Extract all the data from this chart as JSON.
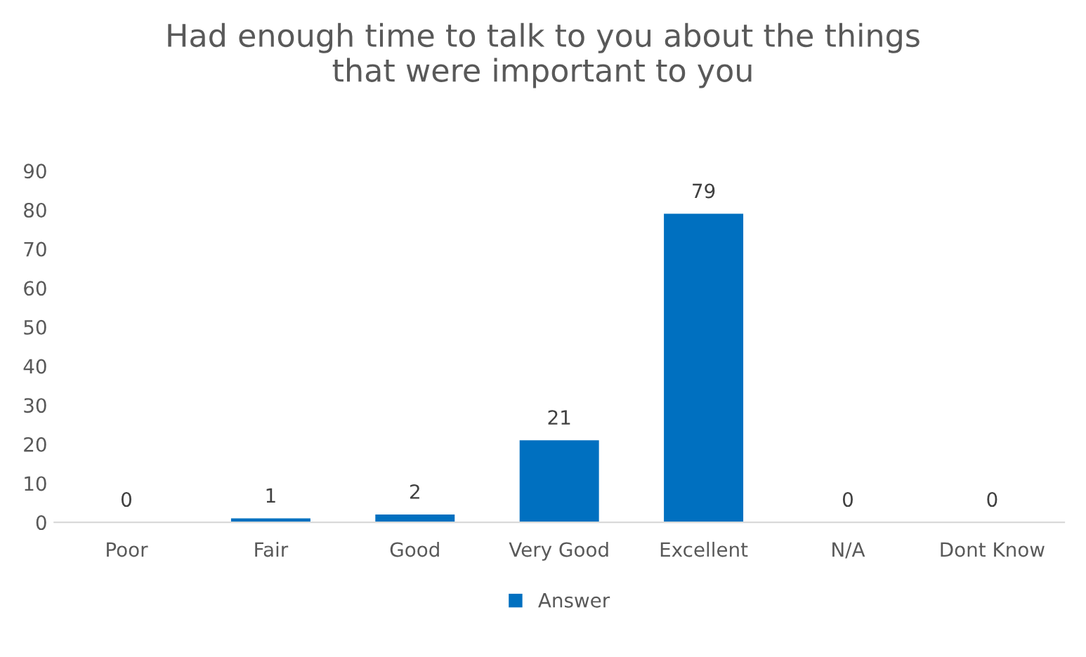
{
  "chart_data": {
    "type": "bar",
    "title": "Had enough time to talk to you about the things\nthat were important to you",
    "categories": [
      "Poor",
      "Fair",
      "Good",
      "Very Good",
      "Excellent",
      "N/A",
      "Dont Know"
    ],
    "series": [
      {
        "name": "Answer",
        "color": "#0070c0",
        "values": [
          0,
          1,
          2,
          21,
          79,
          0,
          0
        ]
      }
    ],
    "ylim": [
      0,
      90
    ],
    "yticks": [
      0,
      10,
      20,
      30,
      40,
      50,
      60,
      70,
      80,
      90
    ],
    "grid": false,
    "legend": "bottom",
    "data_labels": true
  }
}
